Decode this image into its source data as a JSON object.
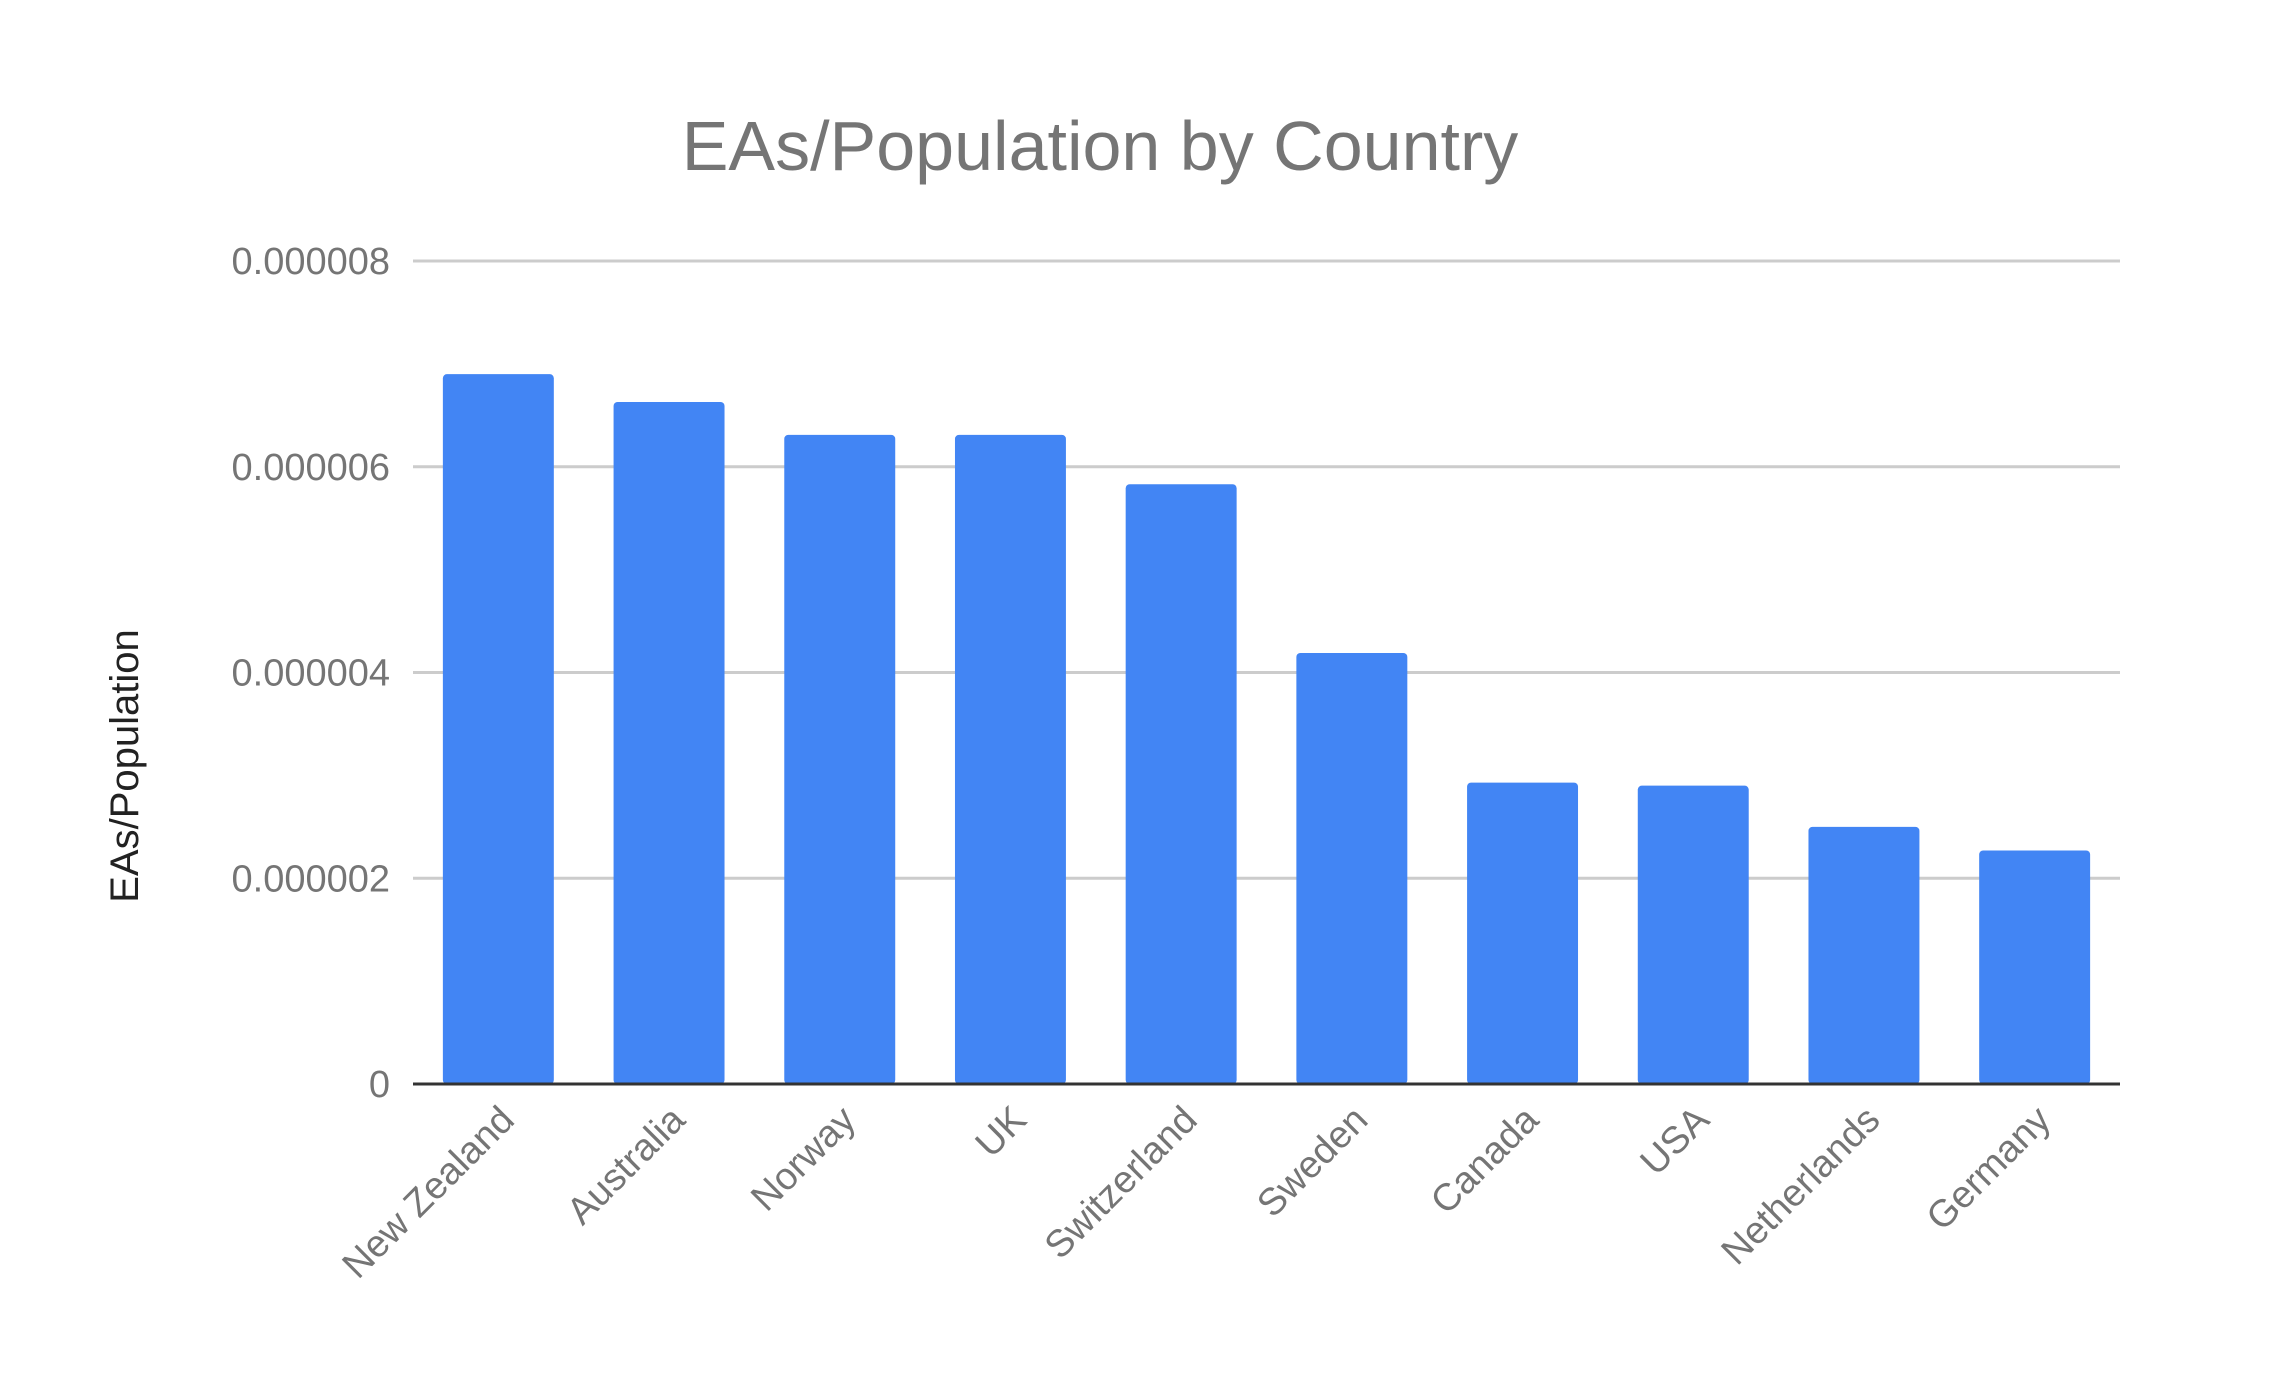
{
  "chart_data": {
    "type": "bar",
    "title": "EAs/Population by Country",
    "xlabel": "",
    "ylabel": "EAs/Population",
    "categories": [
      "New Zealand",
      "Australia",
      "Norway",
      "UK",
      "Switzerland",
      "Sweden",
      "Canada",
      "USA",
      "Netherlands",
      "Germany"
    ],
    "values": [
      6.9e-06,
      6.63e-06,
      6.31e-06,
      6.31e-06,
      5.83e-06,
      4.19e-06,
      2.93e-06,
      2.9e-06,
      2.5e-06,
      2.27e-06
    ],
    "ylim": [
      0,
      8e-06
    ],
    "yticks": [
      0,
      2e-06,
      4e-06,
      6e-06,
      8e-06
    ],
    "ytick_labels": [
      "0",
      "0.000002",
      "0.000004",
      "0.000006",
      "0.000008"
    ],
    "grid": true,
    "legend": "none",
    "bar_color": "#4285f4"
  }
}
